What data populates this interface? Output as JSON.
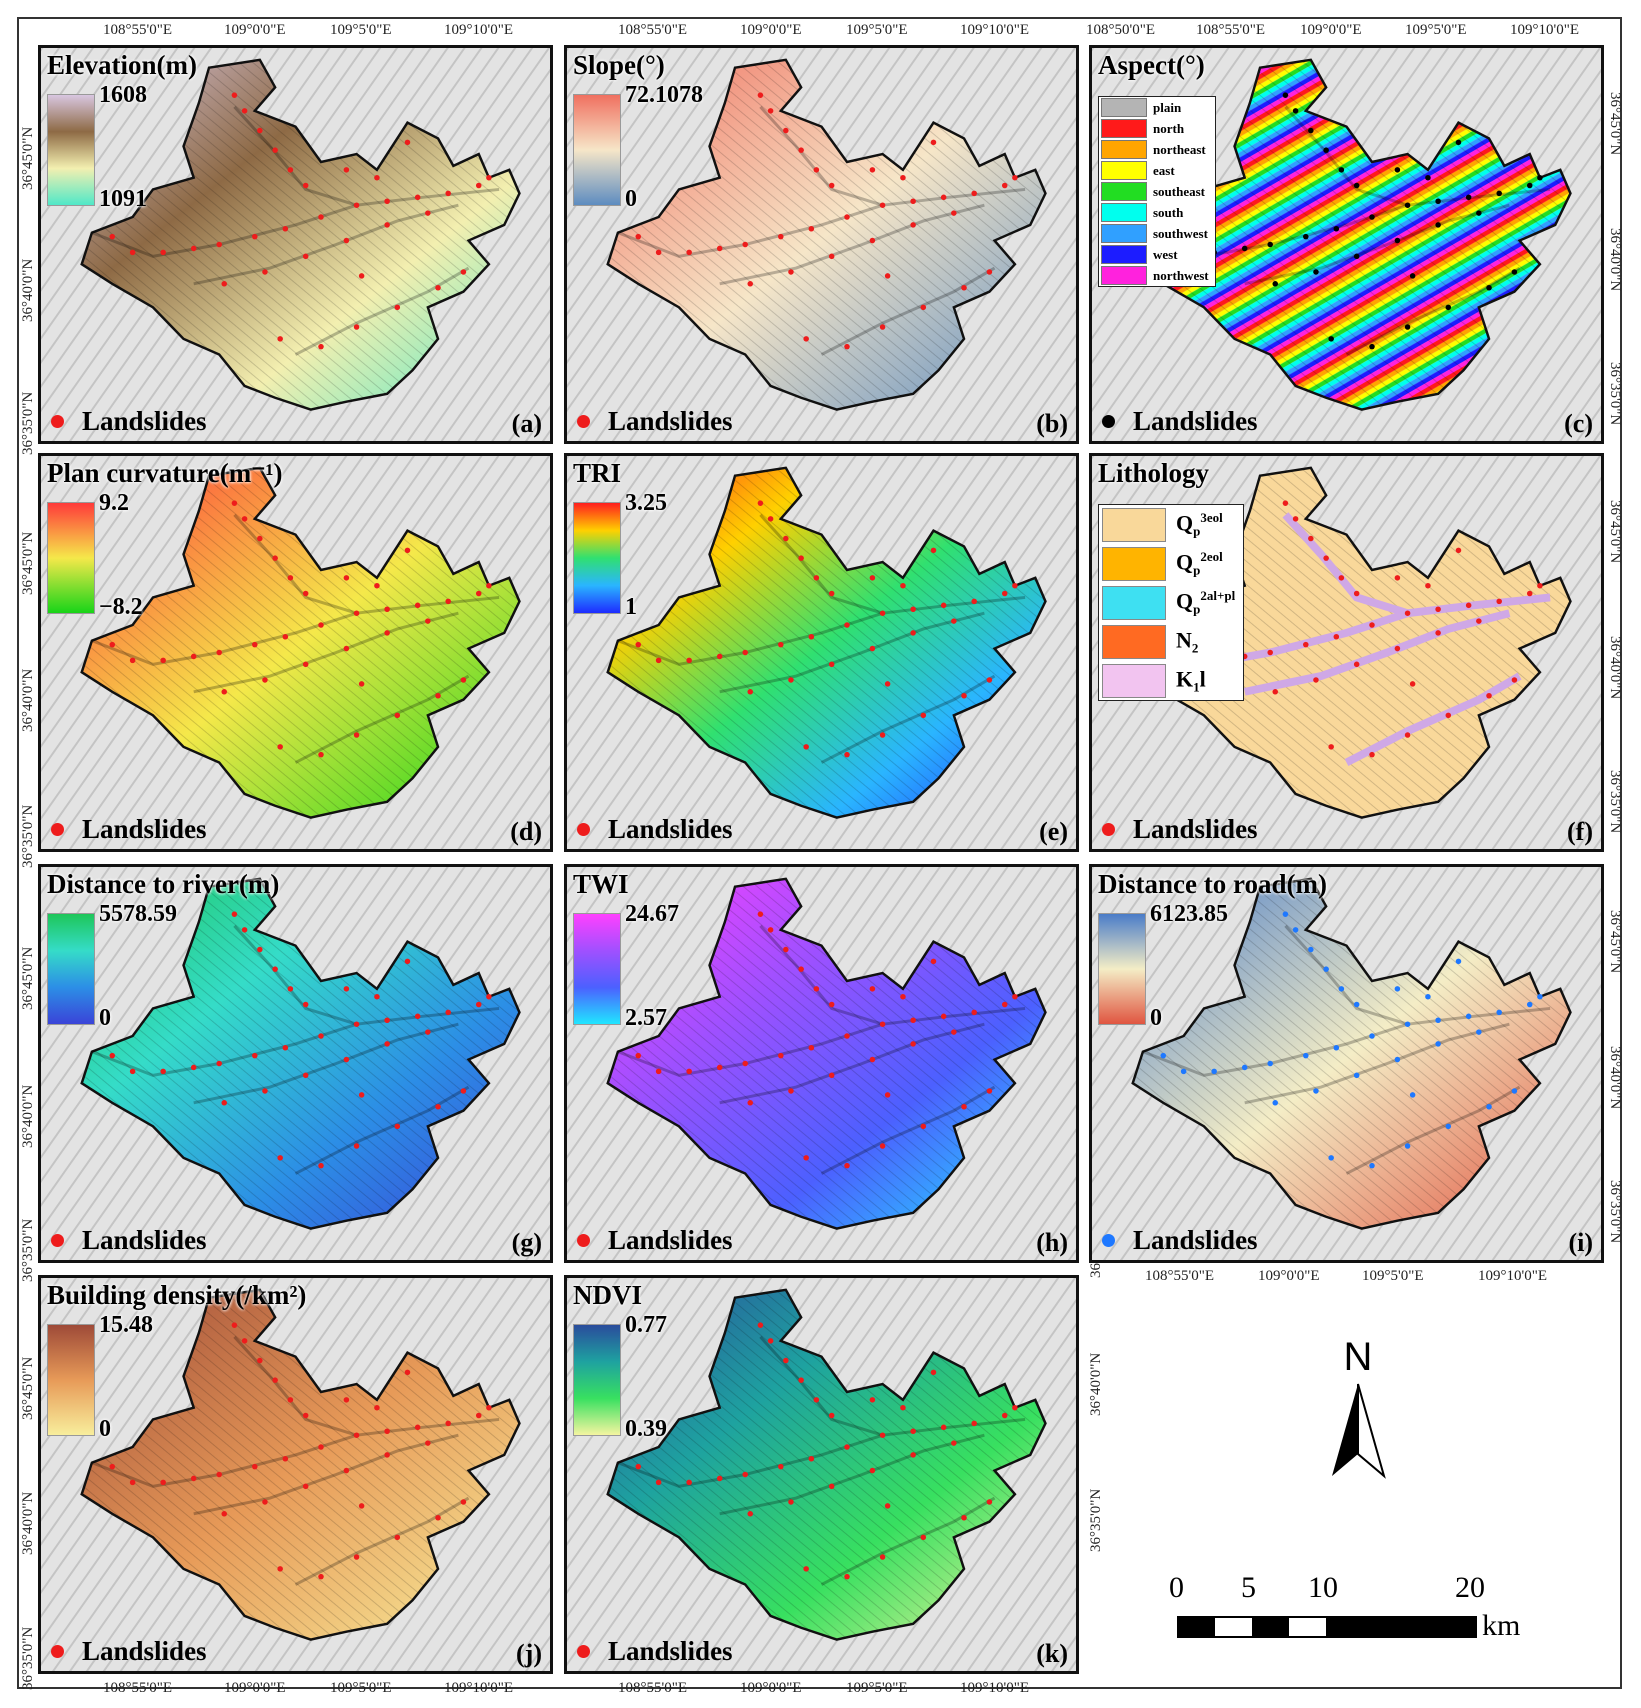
{
  "panels": [
    {
      "id": "a",
      "title": "Elevation(m)",
      "max": "1608",
      "min": "1091",
      "ramp": [
        "#d8c6e0",
        "#8e6a45",
        "#f3efb0",
        "#50e8c8"
      ],
      "letter": "(a)",
      "landslide_color": "#ee1c1c"
    },
    {
      "id": "b",
      "title": "Slope(°)",
      "max": "72.1078",
      "min": "0",
      "ramp": [
        "#f07060",
        "#f6e6c8",
        "#5d8cc0"
      ],
      "letter": "(b)",
      "landslide_color": "#ee1c1c"
    },
    {
      "id": "c",
      "title": "Aspect(°)",
      "letter": "(c)",
      "landslide_color": "#000000",
      "classes": [
        {
          "label": "plain",
          "color": "#b4b4b4"
        },
        {
          "label": "north",
          "color": "#ff1a1a"
        },
        {
          "label": "northeast",
          "color": "#ffa500"
        },
        {
          "label": "east",
          "color": "#ffff00"
        },
        {
          "label": "southeast",
          "color": "#22dd22"
        },
        {
          "label": "south",
          "color": "#00ffee"
        },
        {
          "label": "southwest",
          "color": "#30a0ff"
        },
        {
          "label": "west",
          "color": "#1c1cff"
        },
        {
          "label": "northwest",
          "color": "#ff22dd"
        }
      ]
    },
    {
      "id": "d",
      "title": "Plan curvature(m⁻¹)",
      "max": "9.2",
      "min": "−8.2",
      "ramp": [
        "#ff3a3a",
        "#f5e84a",
        "#18d418"
      ],
      "letter": "(d)",
      "landslide_color": "#ee1c1c"
    },
    {
      "id": "e",
      "title": "TRI",
      "max": "3.25",
      "min": "1",
      "ramp": [
        "#ff1e1e",
        "#ffd000",
        "#30e070",
        "#2ab5ff",
        "#1e2cff"
      ],
      "letter": "(e)",
      "landslide_color": "#ee1c1c"
    },
    {
      "id": "f",
      "title": "Lithology",
      "letter": "(f)",
      "landslide_color": "#ee1c1c",
      "classes": [
        {
          "base": "Q",
          "sub": "p",
          "sup": "3eol",
          "color": "#f9d89a"
        },
        {
          "base": "Q",
          "sub": "p",
          "sup": "2eol",
          "color": "#ffb400"
        },
        {
          "base": "Q",
          "sub": "p",
          "sup": "2al+pl",
          "color": "#3ee0f2"
        },
        {
          "base": "N",
          "sub": "2",
          "sup": "",
          "color": "#ff6a22"
        },
        {
          "base": "K",
          "sub": "1",
          "sup": "",
          "tail": "l",
          "color": "#f2c4f0"
        }
      ]
    },
    {
      "id": "g",
      "title": "Distance to river(m)",
      "max": "5578.59",
      "min": "0",
      "ramp": [
        "#1ec65a",
        "#35dcc8",
        "#2c8ee6",
        "#3a44d8"
      ],
      "letter": "(g)",
      "landslide_color": "#ee1c1c"
    },
    {
      "id": "h",
      "title": "TWI",
      "max": "24.67",
      "min": "2.57",
      "ramp": [
        "#ff40ff",
        "#a050ff",
        "#4c60ff",
        "#20e6ff"
      ],
      "letter": "(h)",
      "landslide_color": "#ee1c1c"
    },
    {
      "id": "i",
      "title": "Distance to road(m)",
      "max": "6123.85",
      "min": "0",
      "ramp": [
        "#4a7cc8",
        "#f4edc6",
        "#e05540"
      ],
      "letter": "(i)",
      "landslide_color": "#1e78ff"
    },
    {
      "id": "j",
      "title": "Building density(/km²)",
      "max": "15.48",
      "min": "0",
      "ramp": [
        "#9e4a38",
        "#e79a58",
        "#f8ee9c"
      ],
      "letter": "(j)",
      "landslide_color": "#ee1c1c"
    },
    {
      "id": "k",
      "title": "NDVI",
      "max": "0.77",
      "min": "0.39",
      "ramp": [
        "#2a4c9c",
        "#1ea2a0",
        "#38e060",
        "#f4f5a0"
      ],
      "letter": "(k)",
      "landslide_color": "#ee1c1c"
    }
  ],
  "landslides_label": "Landslides",
  "lon_ticks": [
    "108°55'0\"E",
    "109°0'0\"E",
    "109°5'0\"E",
    "109°10'0\"E"
  ],
  "lon_ticks_5": [
    "108°50'0\"E",
    "108°55'0\"E",
    "109°0'0\"E",
    "109°5'0\"E",
    "109°10'0\"E"
  ],
  "lat_ticks": [
    "36°45'0\"N",
    "36°40'0\"N",
    "36°35'0\"N"
  ],
  "north_arrow": {
    "label": "N"
  },
  "scale": {
    "labels": [
      "0",
      "5",
      "10",
      "20"
    ],
    "unit": "km"
  }
}
